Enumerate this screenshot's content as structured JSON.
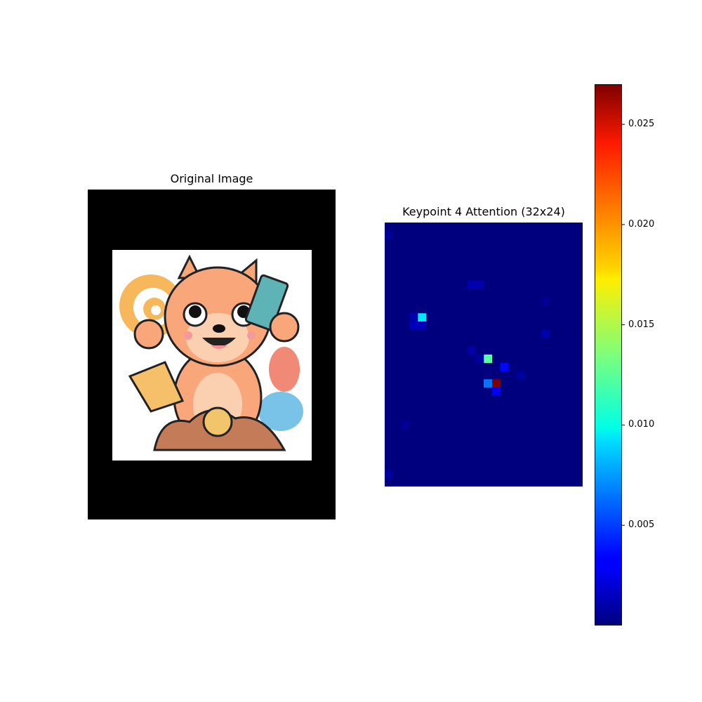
{
  "panels": {
    "original_title": "Original Image",
    "heatmap_title": "Keypoint 4 Attention (32x24)"
  },
  "colors": {
    "heatmap_background": "#00007f",
    "letterbox": "#000000"
  },
  "chart_data": {
    "type": "heatmap",
    "title": "Keypoint 4 Attention (32x24)",
    "rows": 32,
    "cols": 24,
    "colormap": "jet",
    "vmin": 0.0,
    "vmax": 0.027,
    "hot_cells": [
      {
        "row": 11,
        "col": 4,
        "value": 0.0095
      },
      {
        "row": 16,
        "col": 12,
        "value": 0.0125
      },
      {
        "row": 19,
        "col": 13,
        "value": 0.027
      },
      {
        "row": 19,
        "col": 12,
        "value": 0.0065
      },
      {
        "row": 17,
        "col": 14,
        "value": 0.0035
      },
      {
        "row": 20,
        "col": 13,
        "value": 0.003
      },
      {
        "row": 12,
        "col": 3,
        "value": 0.0015
      },
      {
        "row": 12,
        "col": 4,
        "value": 0.0015
      },
      {
        "row": 11,
        "col": 3,
        "value": 0.0012
      },
      {
        "row": 7,
        "col": 10,
        "value": 0.0012
      },
      {
        "row": 7,
        "col": 11,
        "value": 0.0012
      },
      {
        "row": 15,
        "col": 10,
        "value": 0.001
      },
      {
        "row": 16,
        "col": 11,
        "value": 0.0008
      },
      {
        "row": 13,
        "col": 19,
        "value": 0.0012
      },
      {
        "row": 18,
        "col": 16,
        "value": 0.0008
      },
      {
        "row": 24,
        "col": 2,
        "value": 0.0006
      },
      {
        "row": 30,
        "col": 0,
        "value": 0.0008
      },
      {
        "row": 1,
        "col": 0,
        "value": 0.0006
      },
      {
        "row": 9,
        "col": 19,
        "value": 0.0006
      }
    ],
    "colorbar": {
      "ticks": [
        0.005,
        0.01,
        0.015,
        0.02,
        0.025
      ],
      "tick_labels": [
        "0.005",
        "0.010",
        "0.015",
        "0.020",
        "0.025"
      ]
    }
  }
}
